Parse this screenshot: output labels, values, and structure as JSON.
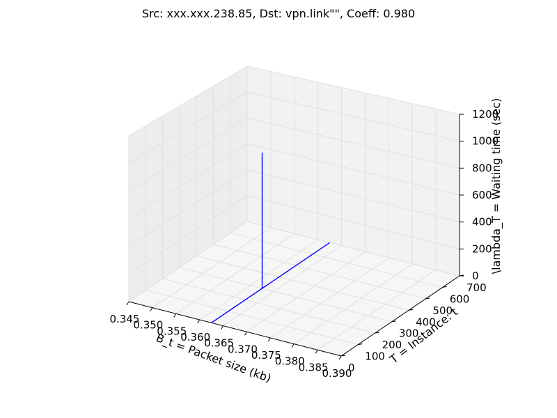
{
  "chart_data": {
    "type": "line3d",
    "title": "Src: xxx.xxx.238.85, Dst: vpn.link\"\", Coeff: 0.980",
    "xlabel": "B_t = Packet size (kb)",
    "ylabel": "T = Instance: t",
    "zlabel": "\\lambda_T = Waiting time (sec)",
    "xlim": [
      0.345,
      0.39
    ],
    "ylim": [
      0,
      700
    ],
    "zlim": [
      0,
      1200
    ],
    "xticks": [
      "0.345",
      "0.350",
      "0.355",
      "0.360",
      "0.365",
      "0.370",
      "0.375",
      "0.380",
      "0.385",
      "0.390"
    ],
    "yticks": [
      "0",
      "100",
      "200",
      "300",
      "400",
      "500",
      "600",
      "700"
    ],
    "zticks": [
      "0",
      "200",
      "400",
      "600",
      "800",
      "1000",
      "1200"
    ],
    "grid": true,
    "series": [
      {
        "points": [
          {
            "x": 0.3625,
            "y": 0,
            "z": 0
          },
          {
            "x": 0.3625,
            "y": 700,
            "z": 0
          }
        ],
        "color": "#0000ff"
      },
      {
        "points": [
          {
            "x": 0.3625,
            "y": 300,
            "z": 0
          },
          {
            "x": 0.3625,
            "y": 300,
            "z": 1000
          }
        ],
        "color": "#0000ff"
      }
    ]
  }
}
